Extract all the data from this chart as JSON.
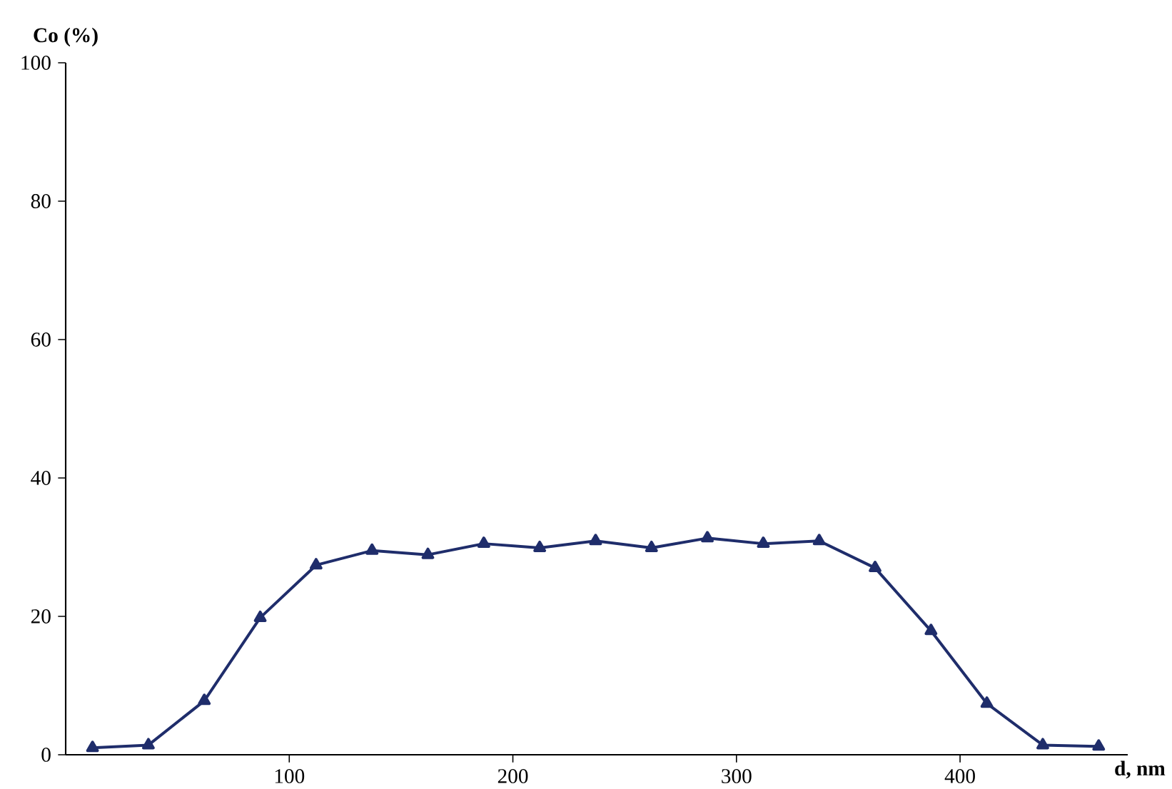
{
  "chart_data": {
    "type": "line",
    "xlabel": "d, nm",
    "ylabel": "Co (%)",
    "x": [
      12,
      37,
      62,
      87,
      112,
      137,
      162,
      187,
      212,
      237,
      262,
      287,
      312,
      337,
      362,
      387,
      412,
      437,
      462
    ],
    "series": [
      {
        "color": "#1f2d6b",
        "values": [
          1.0,
          1.4,
          7.8,
          19.8,
          27.4,
          29.5,
          28.9,
          30.5,
          29.9,
          30.9,
          29.9,
          31.3,
          30.5,
          30.9,
          27.0,
          17.9,
          7.4,
          1.4,
          1.2
        ]
      }
    ],
    "xlim": [
      0,
      475
    ],
    "ylim": [
      0,
      100
    ],
    "xticks": [
      100,
      200,
      300,
      400
    ],
    "yticks": [
      0,
      20,
      40,
      60,
      80,
      100
    ],
    "marker": "triangle",
    "line_style": "solid"
  }
}
